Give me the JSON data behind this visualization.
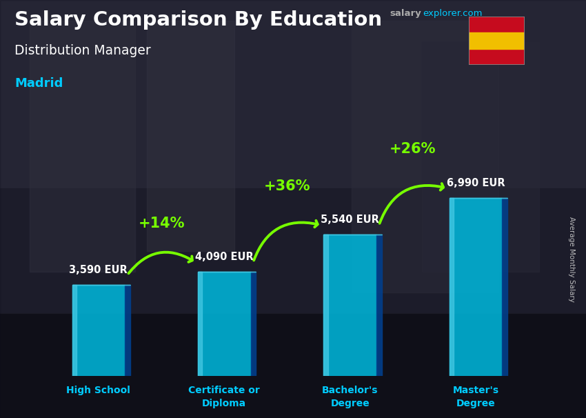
{
  "title_main": "Salary Comparison By Education",
  "title_sub": "Distribution Manager",
  "city": "Madrid",
  "watermark_gray": "salary",
  "watermark_cyan": "explorer.com",
  "ylabel": "Average Monthly Salary",
  "categories": [
    "High School",
    "Certificate or\nDiploma",
    "Bachelor's\nDegree",
    "Master's\nDegree"
  ],
  "values": [
    3590,
    4090,
    5540,
    6990
  ],
  "value_labels": [
    "3,590 EUR",
    "4,090 EUR",
    "5,540 EUR",
    "6,990 EUR"
  ],
  "pct_data": [
    {
      "from": 0,
      "to": 1,
      "label": "+14%"
    },
    {
      "from": 1,
      "to": 2,
      "label": "+36%"
    },
    {
      "from": 2,
      "to": 3,
      "label": "+26%"
    }
  ],
  "bar_color_main": "#00b4d8",
  "bar_color_light": "#48cae4",
  "bar_color_dark": "#0077b6",
  "bar_color_side": "#023e8a",
  "arrow_color": "#77ff00",
  "title_color": "#ffffff",
  "sub_color": "#ffffff",
  "city_color": "#00ccff",
  "value_color": "#ffffff",
  "pct_color": "#77ff00",
  "xtick_color": "#00ccff",
  "bg_dark": "#1a1a2a",
  "bg_mid": "#2d3040",
  "ylim_max": 9500
}
